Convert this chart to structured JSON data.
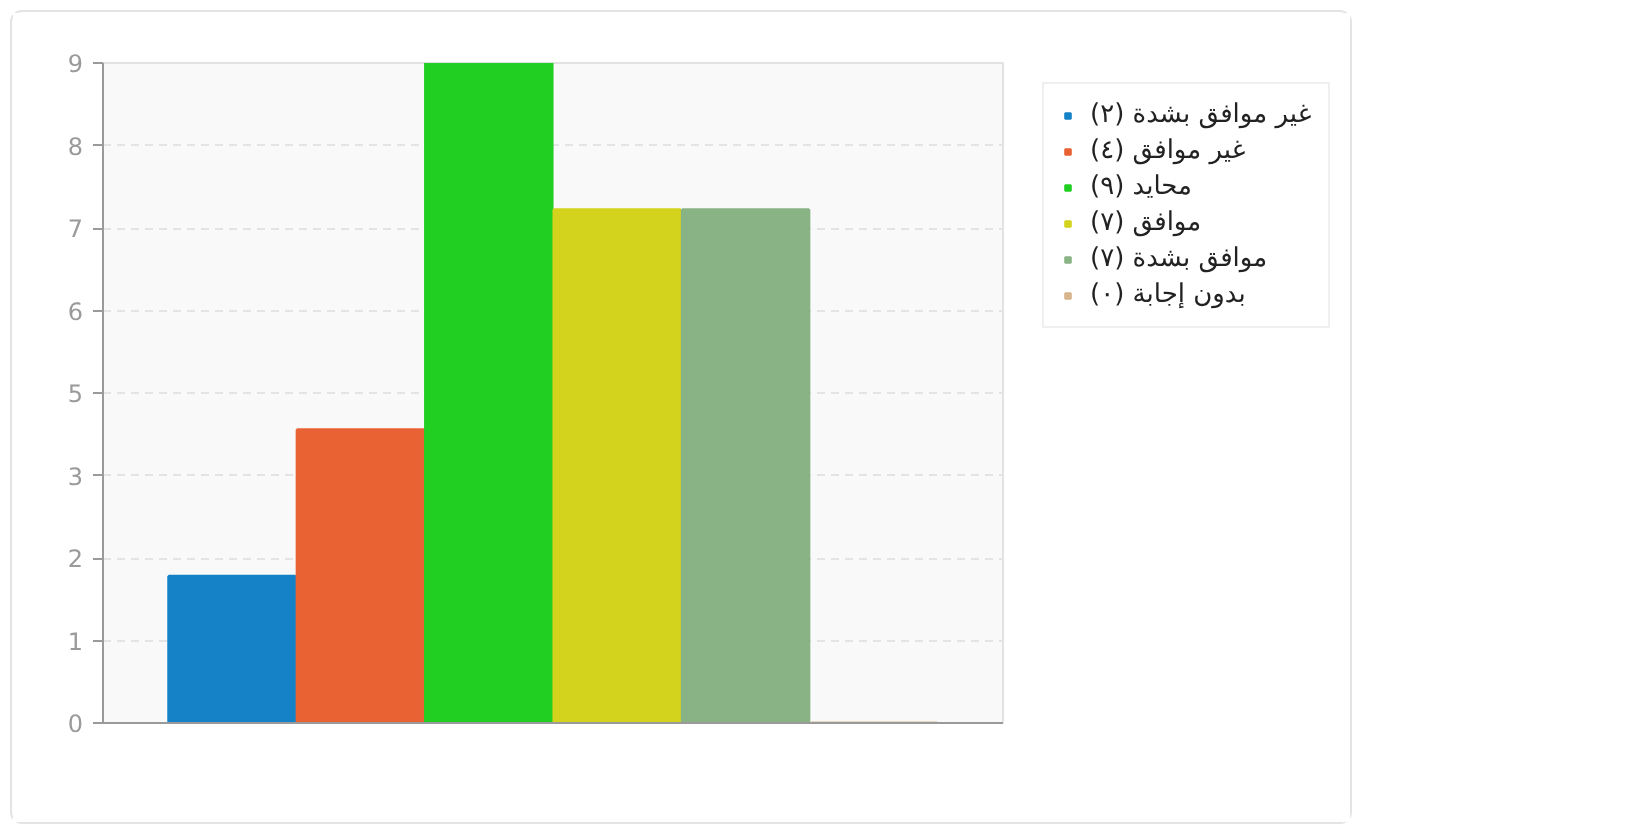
{
  "chart_data": {
    "type": "bar",
    "categories": [
      null
    ],
    "series": [
      {
        "name": "غير موافق بشدة (٢)",
        "color": "#1582c8",
        "values": [
          2
        ]
      },
      {
        "name": "غير موافق (٤)",
        "color": "#e96234",
        "values": [
          4
        ]
      },
      {
        "name": "محايد (٩)",
        "color": "#20cf22",
        "values": [
          9
        ]
      },
      {
        "name": "موافق (٧)",
        "color": "#d3d31e",
        "values": [
          7
        ]
      },
      {
        "name": "موافق بشدة (٧)",
        "color": "#89b385",
        "values": [
          7
        ]
      },
      {
        "name": "بدون إجابة (٠)",
        "color": "#d7b58c",
        "values": [
          0
        ]
      }
    ],
    "ylim": [
      0,
      9
    ],
    "yticks": [
      0,
      {
        "value": 1.125,
        "label": "1"
      },
      {
        "value": 2.25,
        "label": "2"
      },
      {
        "value": 3.375,
        "label": "3"
      },
      {
        "value": 4.5,
        "label": "5"
      },
      {
        "value": 5.625,
        "label": "6"
      },
      {
        "value": 6.75,
        "label": "7"
      },
      {
        "value": 7.875,
        "label": "8"
      },
      9
    ],
    "grid": "y",
    "legend": "right",
    "tick_labels": "y"
  }
}
